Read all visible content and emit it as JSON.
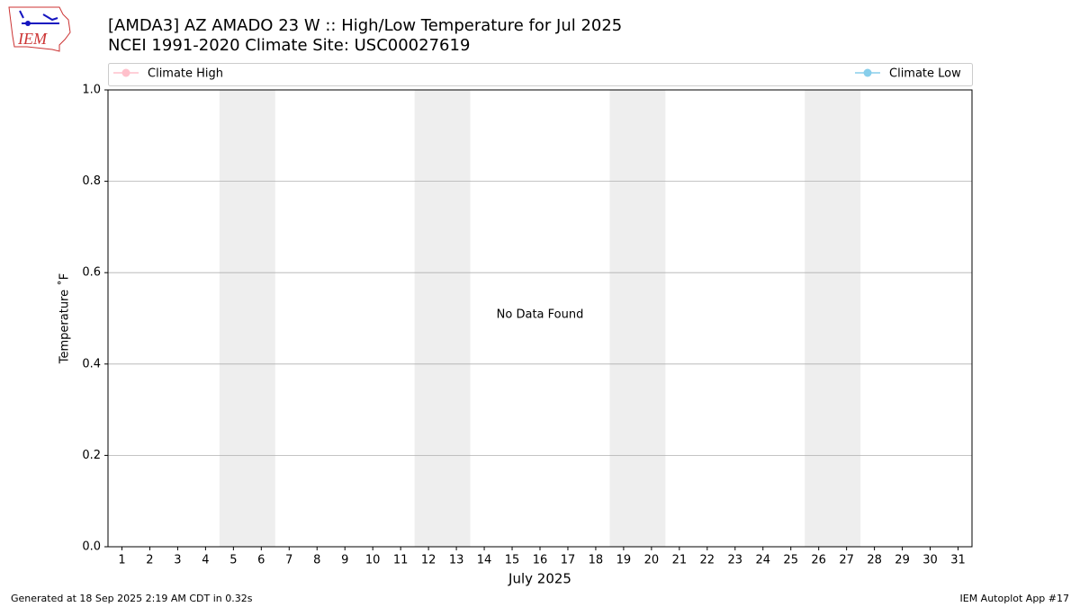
{
  "chart_data": {
    "type": "line",
    "title": "[AMDA3] AZ AMADO 23 W :: High/Low Temperature for Jul 2025",
    "subtitle": "NCEI 1991-2020 Climate Site: USC00027619",
    "x_label": "July 2025",
    "y_label": "Temperature ˚F",
    "annotation": "No Data Found",
    "x": [],
    "series": [
      {
        "name": "Climate High",
        "color": "pink",
        "values": []
      },
      {
        "name": "Climate Low",
        "color": "skyblue",
        "values": []
      }
    ],
    "shaded_spans": [
      [
        4.5,
        6.5
      ],
      [
        11.5,
        13.5
      ],
      [
        18.5,
        20.5
      ],
      [
        25.5,
        27.5
      ]
    ],
    "xlim": [
      0.5,
      31.5
    ],
    "xticks": [
      1,
      2,
      3,
      4,
      5,
      6,
      7,
      8,
      9,
      10,
      11,
      12,
      13,
      14,
      15,
      16,
      17,
      18,
      19,
      20,
      21,
      22,
      23,
      24,
      25,
      26,
      27,
      28,
      29,
      30,
      31
    ],
    "ylim": [
      0,
      1
    ],
    "yticks": [
      {
        "value": 0,
        "label": "0.0"
      },
      0.2,
      0.4,
      0.6,
      0.8,
      {
        "value": 1,
        "label": "1.0"
      }
    ],
    "grid": "y"
  },
  "logo_text": "IEM",
  "footer_left": "Generated at 18 Sep 2025 2:19 AM CDT in 0.32s",
  "footer_right": "IEM Autoplot App #17"
}
